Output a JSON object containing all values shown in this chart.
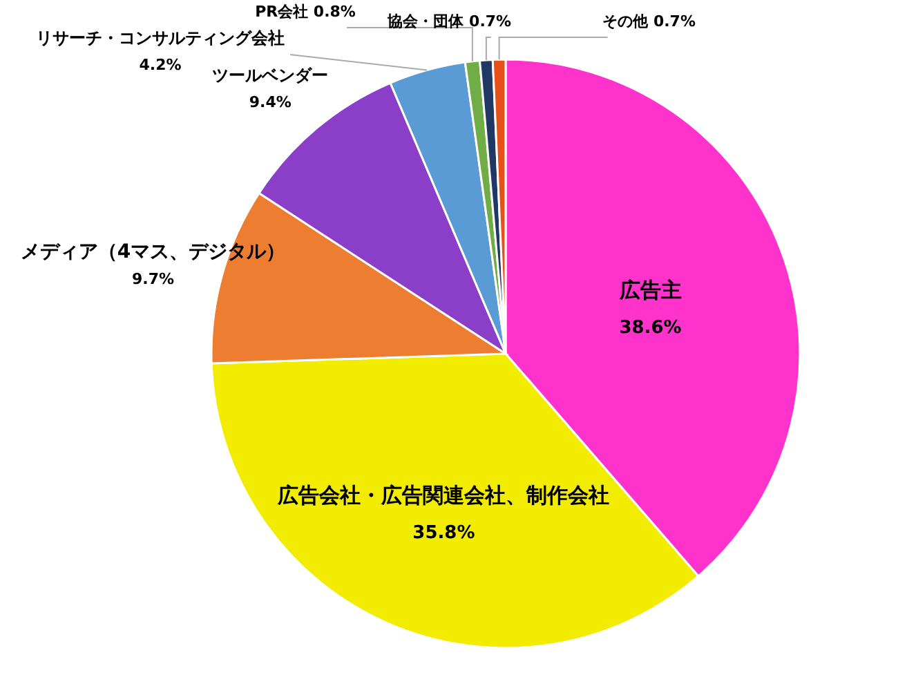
{
  "chart_data": {
    "type": "pie",
    "categories": [
      "広告主",
      "広告会社・広告関連会社、制作会社",
      "メディア（4マス、デジタル）",
      "ツールベンダー",
      "リサーチ・コンサルティング会社",
      "PR会社",
      "協会・団体",
      "その他"
    ],
    "values": [
      38.6,
      35.8,
      9.7,
      9.4,
      4.2,
      0.8,
      0.7,
      0.7
    ],
    "value_labels": [
      "38.6%",
      "35.8%",
      "9.7%",
      "9.4%",
      "4.2%",
      "0.8%",
      "0.7%",
      "0.7%"
    ],
    "colors": [
      "#ff33cc",
      "#f2ed00",
      "#ed7d31",
      "#8b3fc8",
      "#5b9bd5",
      "#70ad47",
      "#1f3864",
      "#e8501a"
    ],
    "legend": false
  }
}
